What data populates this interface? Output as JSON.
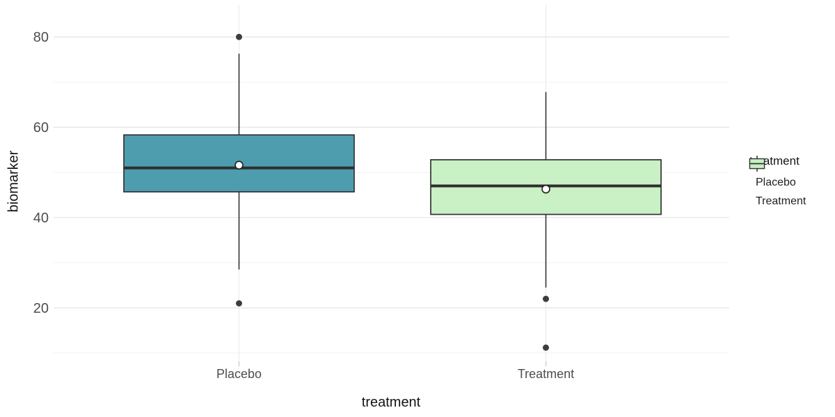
{
  "chart_data": {
    "type": "boxplot",
    "title": "",
    "xlabel": "treatment",
    "ylabel": "biomarker",
    "x_categories": [
      "Placebo",
      "Treatment"
    ],
    "y_axis": {
      "major_ticks": [
        20,
        40,
        60,
        80
      ],
      "minor_ticks": [
        10,
        30,
        50,
        70
      ],
      "range": [
        8.15,
        87.1
      ],
      "grid": true
    },
    "series": [
      {
        "name": "Placebo",
        "fill": "#4398ab",
        "whisker_low": 28.5,
        "q1": 45.7,
        "median": 51.0,
        "q3": 58.3,
        "whisker_high": 76.3,
        "mean": 51.6,
        "outliers": [
          80,
          21
        ]
      },
      {
        "name": "Treatment",
        "fill": "#c7efc3",
        "whisker_low": 24.5,
        "q1": 40.7,
        "median": 47.0,
        "q3": 52.8,
        "whisker_high": 67.8,
        "mean": 46.3,
        "outliers": [
          22,
          11.2
        ]
      }
    ],
    "legend": {
      "title": "treatment",
      "position": "right",
      "entries": [
        {
          "label": "Placebo",
          "fill": "#4398ab"
        },
        {
          "label": "Treatment",
          "fill": "#c7efc3"
        }
      ]
    },
    "style": {
      "box_stroke": "#333333",
      "median_color": "#2e2e2e",
      "outlier_color": "#3d3d3d",
      "mean_fill": "#ffffff",
      "mean_stroke": "#1f1f1f",
      "grid_major": "#e3e3e3",
      "grid_minor": "#f1f1f1",
      "grid_vertical": "#e9e9e9",
      "tick_text": "#4d4d4d",
      "tick_mark": "#cccccc",
      "background": "#ffffff"
    }
  }
}
